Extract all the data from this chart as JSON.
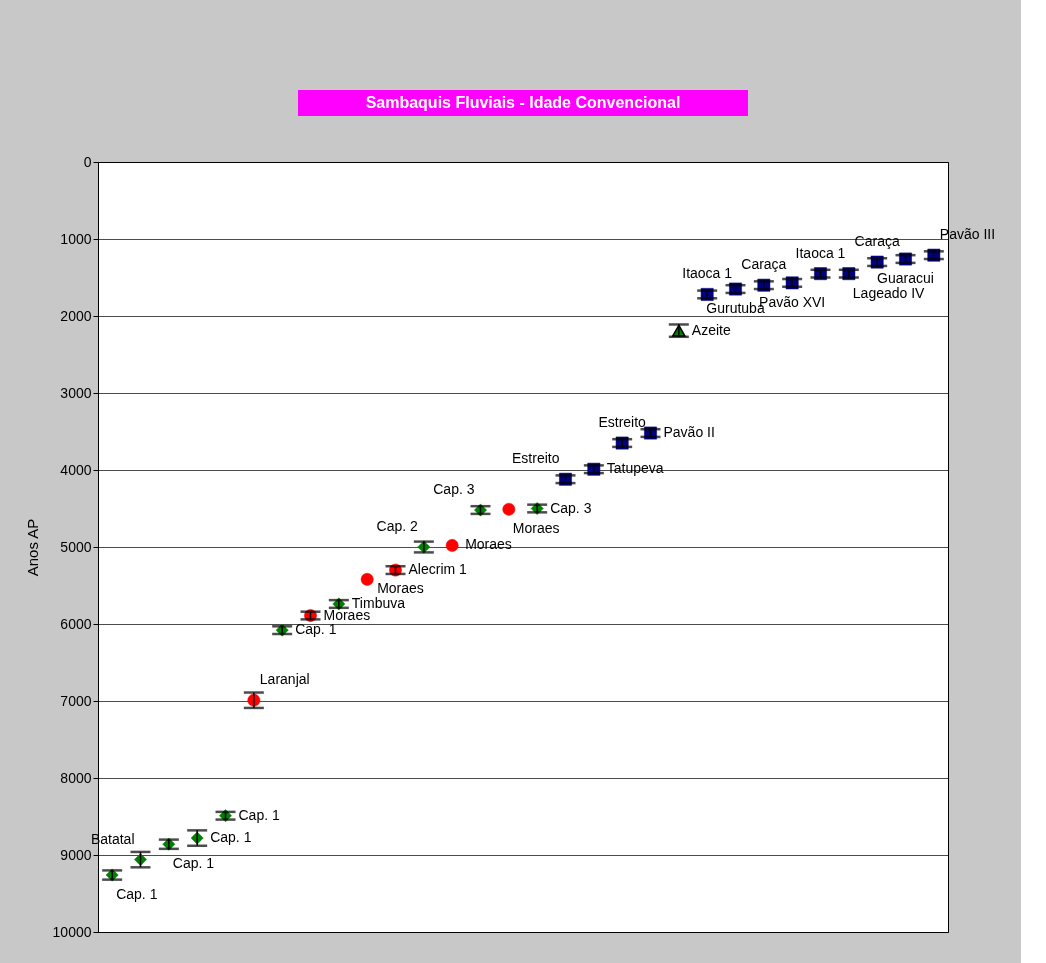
{
  "chart_data": {
    "type": "scatter",
    "title": "Sambaquis Fluviais - Idade Convencional",
    "ylabel": "Anos AP",
    "categories": [
      null,
      null,
      null,
      null,
      null,
      null,
      null,
      null,
      null,
      null,
      null,
      null,
      null,
      null,
      null,
      null,
      null,
      null,
      null,
      null,
      null,
      null,
      null,
      null,
      null,
      null,
      null,
      null,
      null,
      null
    ],
    "ylim": [
      10000,
      0
    ],
    "yticks": [
      0,
      1000,
      2000,
      3000,
      4000,
      5000,
      6000,
      7000,
      8000,
      9000,
      10000
    ],
    "grid": "y",
    "tick_labels": "y",
    "series": [
      {
        "color": "#008000",
        "marker": "diamond",
        "values": [
          9260,
          9060,
          8860,
          8780,
          8490,
          null,
          6080,
          null,
          5740,
          null,
          null,
          5000,
          null,
          4520,
          null,
          4500,
          null,
          null,
          null,
          null,
          null,
          null,
          null,
          null,
          null,
          null,
          null,
          null,
          null,
          null
        ],
        "errors": [
          60,
          100,
          60,
          100,
          50,
          null,
          50,
          null,
          50,
          null,
          null,
          70,
          null,
          50,
          null,
          50,
          null,
          null,
          null,
          null,
          null,
          null,
          null,
          null,
          null,
          null,
          null,
          null,
          null,
          null
        ]
      },
      {
        "color": "#ff0000",
        "marker": "circle",
        "values": [
          null,
          null,
          null,
          null,
          null,
          6990,
          null,
          5890,
          null,
          5420,
          5300,
          null,
          4980,
          null,
          4510,
          null,
          null,
          null,
          null,
          null,
          null,
          null,
          null,
          null,
          null,
          null,
          null,
          null,
          null,
          null
        ],
        "errors": [
          null,
          null,
          null,
          null,
          null,
          100,
          null,
          50,
          null,
          null,
          50,
          null,
          null,
          null,
          null,
          null,
          null,
          null,
          null,
          null,
          null,
          null,
          null,
          null,
          null,
          null,
          null,
          null,
          null,
          null
        ]
      },
      {
        "color": "#000080",
        "marker": "square",
        "values": [
          null,
          null,
          null,
          null,
          null,
          null,
          null,
          null,
          null,
          null,
          null,
          null,
          null,
          null,
          null,
          null,
          4120,
          3990,
          3650,
          3520,
          null,
          1720,
          1650,
          1600,
          1570,
          1450,
          1450,
          1300,
          1260,
          1210
        ],
        "errors": [
          null,
          null,
          null,
          null,
          null,
          null,
          null,
          null,
          null,
          null,
          null,
          null,
          null,
          null,
          null,
          null,
          50,
          50,
          50,
          50,
          null,
          50,
          50,
          50,
          50,
          50,
          50,
          50,
          50,
          50
        ]
      },
      {
        "color": "#008000",
        "marker": "triangle",
        "values": [
          null,
          null,
          null,
          null,
          null,
          null,
          null,
          null,
          null,
          null,
          null,
          null,
          null,
          null,
          null,
          null,
          null,
          null,
          null,
          null,
          2190,
          null,
          null,
          null,
          null,
          null,
          null,
          null,
          null,
          null
        ],
        "errors": [
          null,
          null,
          null,
          null,
          null,
          null,
          null,
          null,
          null,
          null,
          null,
          null,
          null,
          null,
          null,
          null,
          null,
          null,
          null,
          null,
          80,
          null,
          null,
          null,
          null,
          null,
          null,
          null,
          null,
          null
        ]
      }
    ],
    "annotations": [
      "Cap. 1",
      "Batatal",
      "Cap. 1",
      "Cap. 1",
      "Cap. 1",
      "Laranjal",
      "Cap. 1",
      "Moraes",
      "Timbuva",
      "Moraes",
      "Alecrim 1",
      "Cap. 2",
      "Moraes",
      "Cap. 3",
      "Moraes",
      "Cap. 3",
      "Estreito",
      "Tatupeva",
      "Estreito",
      "Pavão II",
      "Azeite",
      "Itaoca 1",
      "Gurutuba",
      "Caraça",
      "Pavão XVI",
      "Itaoca 1",
      "Lageado IV",
      "Caraça",
      "Guaracui",
      "Pavão III"
    ]
  }
}
